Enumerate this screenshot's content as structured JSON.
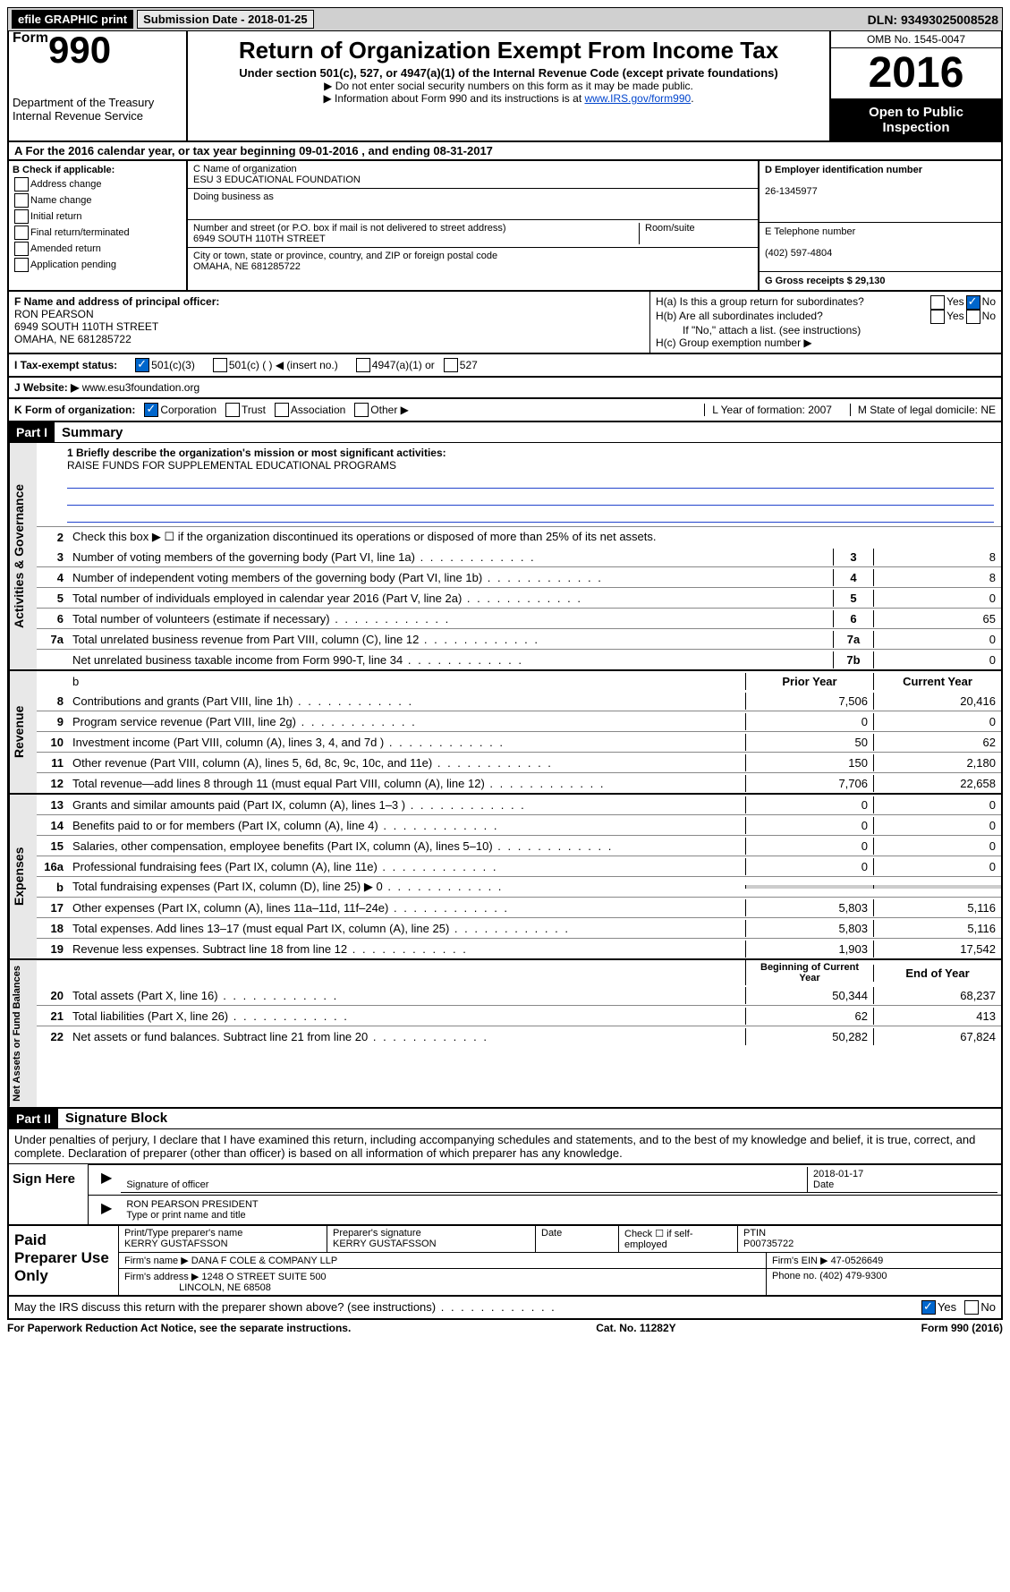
{
  "topbar": {
    "efile": "efile GRAPHIC print",
    "submission": "Submission Date - 2018-01-25",
    "dln": "DLN: 93493025008528"
  },
  "header": {
    "form_prefix": "Form",
    "form_no": "990",
    "dept1": "Department of the Treasury",
    "dept2": "Internal Revenue Service",
    "title": "Return of Organization Exempt From Income Tax",
    "subtitle": "Under section 501(c), 527, or 4947(a)(1) of the Internal Revenue Code (except private foundations)",
    "note1": "▶ Do not enter social security numbers on this form as it may be made public.",
    "note2": "▶ Information about Form 990 and its instructions is at ",
    "note2_link": "www.IRS.gov/form990",
    "omb": "OMB No. 1545-0047",
    "year": "2016",
    "open": "Open to Public Inspection"
  },
  "rowA": "A For the 2016 calendar year, or tax year beginning 09-01-2016  , and ending 08-31-2017",
  "secB": {
    "title": "B Check if applicable:",
    "items": [
      "Address change",
      "Name change",
      "Initial return",
      "Final return/terminated",
      "Amended return",
      "Application pending"
    ]
  },
  "secC": {
    "name_lbl": "C Name of organization",
    "name": "ESU 3 EDUCATIONAL FOUNDATION",
    "dba_lbl": "Doing business as",
    "street_lbl": "Number and street (or P.O. box if mail is not delivered to street address)",
    "room_lbl": "Room/suite",
    "street": "6949 SOUTH 110TH STREET",
    "city_lbl": "City or town, state or province, country, and ZIP or foreign postal code",
    "city": "OMAHA, NE  681285722"
  },
  "secD": {
    "ein_lbl": "D Employer identification number",
    "ein": "26-1345977",
    "tel_lbl": "E Telephone number",
    "tel": "(402) 597-4804",
    "gross_lbl": "G Gross receipts $ 29,130"
  },
  "secF": {
    "lbl": "F Name and address of principal officer:",
    "name": "RON PEARSON",
    "addr1": "6949 SOUTH 110TH STREET",
    "addr2": "OMAHA, NE  681285722"
  },
  "secH": {
    "a": "H(a)  Is this a group return for subordinates?",
    "b": "H(b)  Are all subordinates included?",
    "b_note": "If \"No,\" attach a list. (see instructions)",
    "c": "H(c)  Group exemption number ▶",
    "yes": "Yes",
    "no": "No"
  },
  "rowI": {
    "lbl": "I   Tax-exempt status:",
    "o1": "501(c)(3)",
    "o2": "501(c) (   ) ◀ (insert no.)",
    "o3": "4947(a)(1) or",
    "o4": "527"
  },
  "rowJ": {
    "lbl": "J   Website: ▶",
    "val": "www.esu3foundation.org"
  },
  "rowK": {
    "lbl": "K Form of organization:",
    "o1": "Corporation",
    "o2": "Trust",
    "o3": "Association",
    "o4": "Other ▶",
    "L": "L Year of formation: 2007",
    "M": "M State of legal domicile: NE"
  },
  "part1": {
    "hdr": "Part I",
    "title": "Summary"
  },
  "mission": {
    "q": "1   Briefly describe the organization's mission or most significant activities:",
    "a": "RAISE FUNDS FOR SUPPLEMENTAL EDUCATIONAL PROGRAMS"
  },
  "governance": {
    "label": "Activities & Governance",
    "l2": "Check this box ▶ ☐  if the organization discontinued its operations or disposed of more than 25% of its net assets.",
    "rows": [
      {
        "n": "3",
        "d": "Number of voting members of the governing body (Part VI, line 1a)",
        "b": "3",
        "v": "8"
      },
      {
        "n": "4",
        "d": "Number of independent voting members of the governing body (Part VI, line 1b)",
        "b": "4",
        "v": "8"
      },
      {
        "n": "5",
        "d": "Total number of individuals employed in calendar year 2016 (Part V, line 2a)",
        "b": "5",
        "v": "0"
      },
      {
        "n": "6",
        "d": "Total number of volunteers (estimate if necessary)",
        "b": "6",
        "v": "65"
      },
      {
        "n": "7a",
        "d": "Total unrelated business revenue from Part VIII, column (C), line 12",
        "b": "7a",
        "v": "0"
      },
      {
        "n": "",
        "d": "Net unrelated business taxable income from Form 990-T, line 34",
        "b": "7b",
        "v": "0"
      }
    ]
  },
  "revenue": {
    "label": "Revenue",
    "hdr_prior": "Prior Year",
    "hdr_curr": "Current Year",
    "rows": [
      {
        "n": "8",
        "d": "Contributions and grants (Part VIII, line 1h)",
        "p": "7,506",
        "c": "20,416"
      },
      {
        "n": "9",
        "d": "Program service revenue (Part VIII, line 2g)",
        "p": "0",
        "c": "0"
      },
      {
        "n": "10",
        "d": "Investment income (Part VIII, column (A), lines 3, 4, and 7d )",
        "p": "50",
        "c": "62"
      },
      {
        "n": "11",
        "d": "Other revenue (Part VIII, column (A), lines 5, 6d, 8c, 9c, 10c, and 11e)",
        "p": "150",
        "c": "2,180"
      },
      {
        "n": "12",
        "d": "Total revenue—add lines 8 through 11 (must equal Part VIII, column (A), line 12)",
        "p": "7,706",
        "c": "22,658"
      }
    ]
  },
  "expenses": {
    "label": "Expenses",
    "rows": [
      {
        "n": "13",
        "d": "Grants and similar amounts paid (Part IX, column (A), lines 1–3 )",
        "p": "0",
        "c": "0"
      },
      {
        "n": "14",
        "d": "Benefits paid to or for members (Part IX, column (A), line 4)",
        "p": "0",
        "c": "0"
      },
      {
        "n": "15",
        "d": "Salaries, other compensation, employee benefits (Part IX, column (A), lines 5–10)",
        "p": "0",
        "c": "0"
      },
      {
        "n": "16a",
        "d": "Professional fundraising fees (Part IX, column (A), line 11e)",
        "p": "0",
        "c": "0"
      },
      {
        "n": "b",
        "d": "Total fundraising expenses (Part IX, column (D), line 25) ▶ 0",
        "p": "",
        "c": "",
        "shade": true
      },
      {
        "n": "17",
        "d": "Other expenses (Part IX, column (A), lines 11a–11d, 11f–24e)",
        "p": "5,803",
        "c": "5,116"
      },
      {
        "n": "18",
        "d": "Total expenses. Add lines 13–17 (must equal Part IX, column (A), line 25)",
        "p": "5,803",
        "c": "5,116"
      },
      {
        "n": "19",
        "d": "Revenue less expenses. Subtract line 18 from line 12",
        "p": "1,903",
        "c": "17,542"
      }
    ]
  },
  "netassets": {
    "label": "Net Assets or Fund Balances",
    "hdr_begin": "Beginning of Current Year",
    "hdr_end": "End of Year",
    "rows": [
      {
        "n": "20",
        "d": "Total assets (Part X, line 16)",
        "p": "50,344",
        "c": "68,237"
      },
      {
        "n": "21",
        "d": "Total liabilities (Part X, line 26)",
        "p": "62",
        "c": "413"
      },
      {
        "n": "22",
        "d": "Net assets or fund balances. Subtract line 21 from line 20",
        "p": "50,282",
        "c": "67,824"
      }
    ]
  },
  "part2": {
    "hdr": "Part II",
    "title": "Signature Block"
  },
  "sig": {
    "intro": "Under penalties of perjury, I declare that I have examined this return, including accompanying schedules and statements, and to the best of my knowledge and belief, it is true, correct, and complete. Declaration of preparer (other than officer) is based on all information of which preparer has any knowledge.",
    "sign_here": "Sign Here",
    "date": "2018-01-17",
    "sig_lbl": "Signature of officer",
    "date_lbl": "Date",
    "name": "RON PEARSON  PRESIDENT",
    "name_lbl": "Type or print name and title"
  },
  "prep": {
    "title": "Paid Preparer Use Only",
    "r1": {
      "c1_lbl": "Print/Type preparer's name",
      "c1": "KERRY GUSTAFSSON",
      "c2_lbl": "Preparer's signature",
      "c2": "KERRY GUSTAFSSON",
      "c3_lbl": "Date",
      "c4_lbl": "Check ☐ if self-employed",
      "c5_lbl": "PTIN",
      "c5": "P00735722"
    },
    "r2": {
      "c1_lbl": "Firm's name    ▶",
      "c1": "DANA F COLE & COMPANY LLP",
      "c2_lbl": "Firm's EIN ▶",
      "c2": "47-0526649"
    },
    "r3": {
      "c1_lbl": "Firm's address ▶",
      "c1": "1248 O STREET SUITE 500",
      "c1b": "LINCOLN, NE  68508",
      "c2_lbl": "Phone no.",
      "c2": "(402) 479-9300"
    }
  },
  "irs_discuss": "May the IRS discuss this return with the preparer shown above? (see instructions)",
  "footer": {
    "f1": "For Paperwork Reduction Act Notice, see the separate instructions.",
    "f2": "Cat. No. 11282Y",
    "f3": "Form 990 (2016)"
  }
}
